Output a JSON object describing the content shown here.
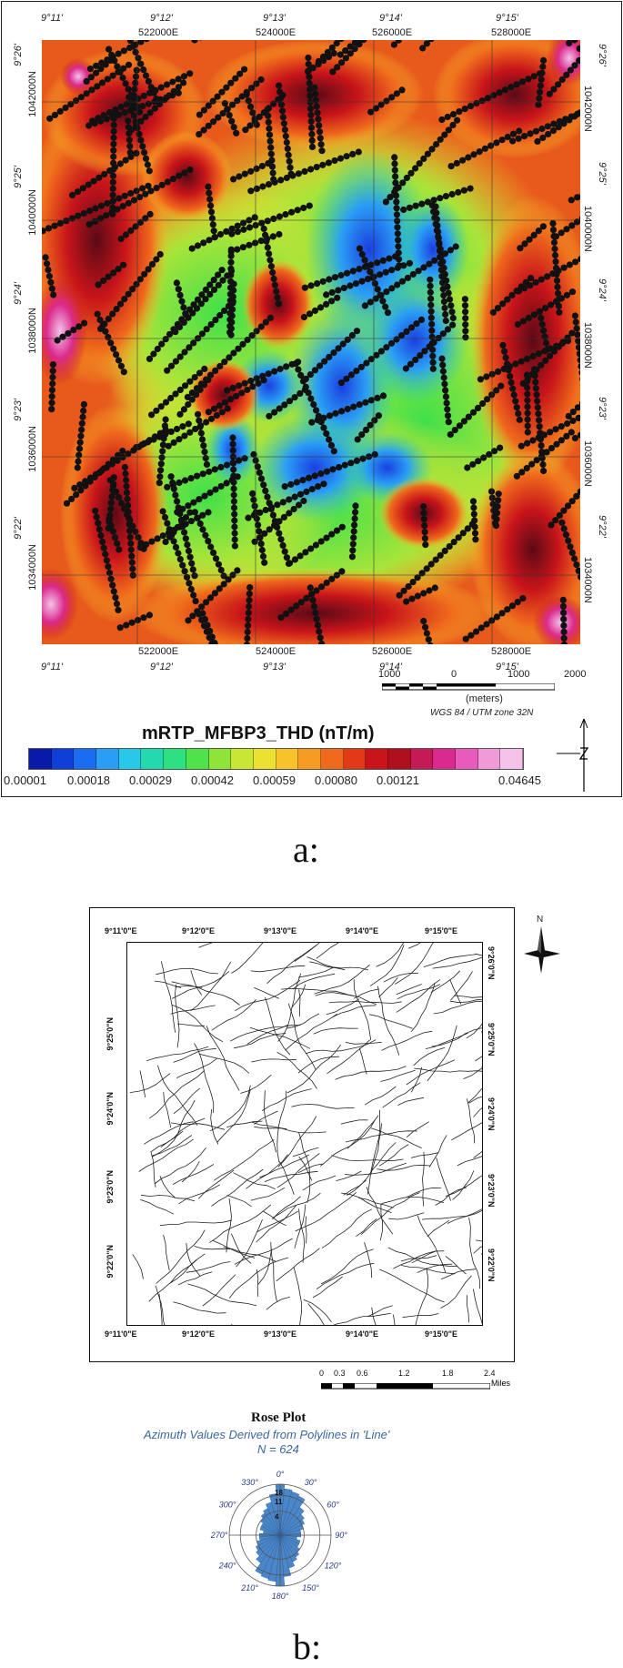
{
  "panel_a": {
    "caption": "a:",
    "top_lon_labels": [
      "9°11'",
      "9°12'",
      "9°13'",
      "9°14'",
      "9°15'"
    ],
    "bottom_lon_labels": [
      "9°11'",
      "9°12'",
      "9°13'",
      "9°14'",
      "9°15'"
    ],
    "top_easting_labels": [
      "522000E",
      "524000E",
      "526000E",
      "528000E"
    ],
    "bottom_easting_labels": [
      "522000E",
      "524000E",
      "526000E",
      "528000E"
    ],
    "left_lat_labels": [
      "9°26'",
      "9°25'",
      "9°24'",
      "9°23'",
      "9°22'"
    ],
    "right_lat_labels": [
      "9°26'",
      "9°25'",
      "9°24'",
      "9°23'",
      "9°22'"
    ],
    "left_northing_labels": [
      "1042000N",
      "1040000N",
      "1038000N",
      "1036000N",
      "1034000N"
    ],
    "right_northing_labels": [
      "1042000N",
      "1040000N",
      "1038000N",
      "1036000N",
      "1034000N"
    ],
    "scale_labels": [
      "1000",
      "0",
      "1000",
      "2000"
    ],
    "scale_unit": "(meters)",
    "projection": "WGS 84 / UTM zone 32N",
    "colorbar_title": "mRTP_MFBP3_THD (nT/m)",
    "colorbar_ticks": [
      "0.00001",
      "0.00018",
      "0.00029",
      "0.00042",
      "0.00059",
      "0.00080",
      "0.00121",
      "0.04645"
    ],
    "colorbar_colors": [
      "#0a1aa8",
      "#0f3fd8",
      "#1a6cf0",
      "#2a9df5",
      "#27c8e8",
      "#22d9b0",
      "#2ee080",
      "#4fe24a",
      "#8fe43a",
      "#c8e633",
      "#eae131",
      "#f7c22a",
      "#f59a22",
      "#ef6a1c",
      "#e23a17",
      "#c8141a",
      "#b0101e",
      "#c41a55",
      "#db2a8e",
      "#e85bbd",
      "#f19ad8",
      "#f4c2e8"
    ]
  },
  "panel_b": {
    "caption": "b:",
    "top_lon_labels": [
      "9°11'0\"E",
      "9°12'0\"E",
      "9°13'0\"E",
      "9°14'0\"E",
      "9°15'0\"E"
    ],
    "bottom_lon_labels": [
      "9°11'0\"E",
      "9°12'0\"E",
      "9°13'0\"E",
      "9°14'0\"E",
      "9°15'0\"E"
    ],
    "left_lat_labels": [
      "9°25'0\"N",
      "9°24'0\"N",
      "9°23'0\"N",
      "9°22'0\"N"
    ],
    "right_lat_labels": [
      "9°26'0\"N",
      "9°25'0\"N",
      "9°24'0\"N",
      "9°23'0\"N",
      "9°22'0\"N"
    ],
    "north_label": "N",
    "scale_labels": [
      "0",
      "0.3",
      "0.6",
      "1.2",
      "1.8",
      "2.4"
    ],
    "scale_unit": "Miles"
  },
  "rose_plot": {
    "title": "Rose Plot",
    "subtitle": "Azimuth Values Derived from Polylines in 'Line'",
    "count": "N = 624",
    "angle_labels": [
      "0°",
      "30°",
      "60°",
      "90°",
      "120°",
      "150°",
      "180°",
      "210°",
      "240°",
      "270°",
      "300°",
      "330°"
    ],
    "radial_labels": [
      "18",
      "11",
      "4"
    ],
    "petal_color": "#4a86c8",
    "petals_azimuth_deg": [
      0,
      10,
      20,
      30,
      40,
      50,
      60,
      70,
      80,
      90,
      100,
      110,
      120,
      130,
      140,
      150,
      160,
      170
    ],
    "petals_count": [
      18,
      15,
      14,
      13,
      8,
      6,
      5,
      4,
      3,
      3,
      2,
      3,
      3,
      4,
      5,
      6,
      8,
      12
    ]
  }
}
